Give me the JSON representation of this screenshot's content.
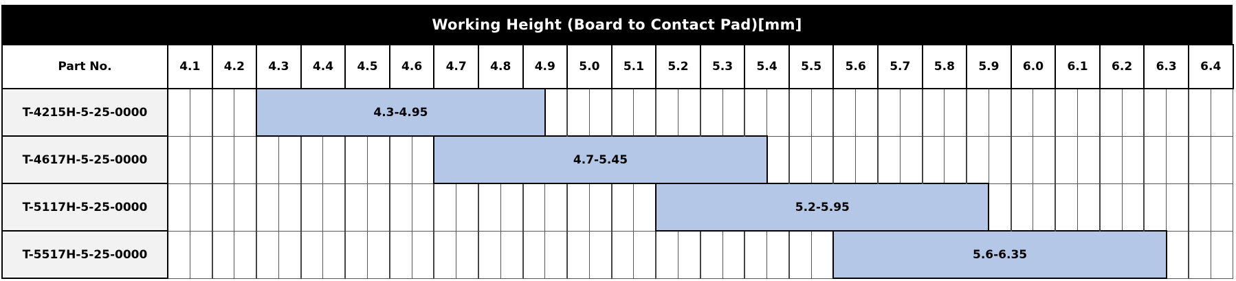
{
  "chart_data": {
    "type": "table",
    "title": "Working Height (Board to Contact Pad)[mm]",
    "first_column_header": "Part No.",
    "columns": [
      "4.1",
      "4.2",
      "4.3",
      "4.4",
      "4.5",
      "4.6",
      "4.7",
      "4.8",
      "4.9",
      "5.0",
      "5.1",
      "5.2",
      "5.3",
      "5.4",
      "5.5",
      "5.6",
      "5.7",
      "5.8",
      "5.9",
      "6.0",
      "6.1",
      "6.2",
      "6.3",
      "6.4"
    ],
    "column_step": 0.1,
    "rows": [
      {
        "part": "T-4215H-5-25-0000",
        "start": 4.3,
        "end": 4.95,
        "label": "4.3-4.95"
      },
      {
        "part": "T-4617H-5-25-0000",
        "start": 4.7,
        "end": 5.45,
        "label": "4.7-5.45"
      },
      {
        "part": "T-5117H-5-25-0000",
        "start": 5.2,
        "end": 5.95,
        "label": "5.2-5.95"
      },
      {
        "part": "T-5517H-5-25-0000",
        "start": 5.6,
        "end": 6.35,
        "label": "5.6-6.35"
      }
    ],
    "bar_color": "#b4c7e7",
    "part_cell_color": "#f2f2f2",
    "title_bg": "#000000"
  }
}
